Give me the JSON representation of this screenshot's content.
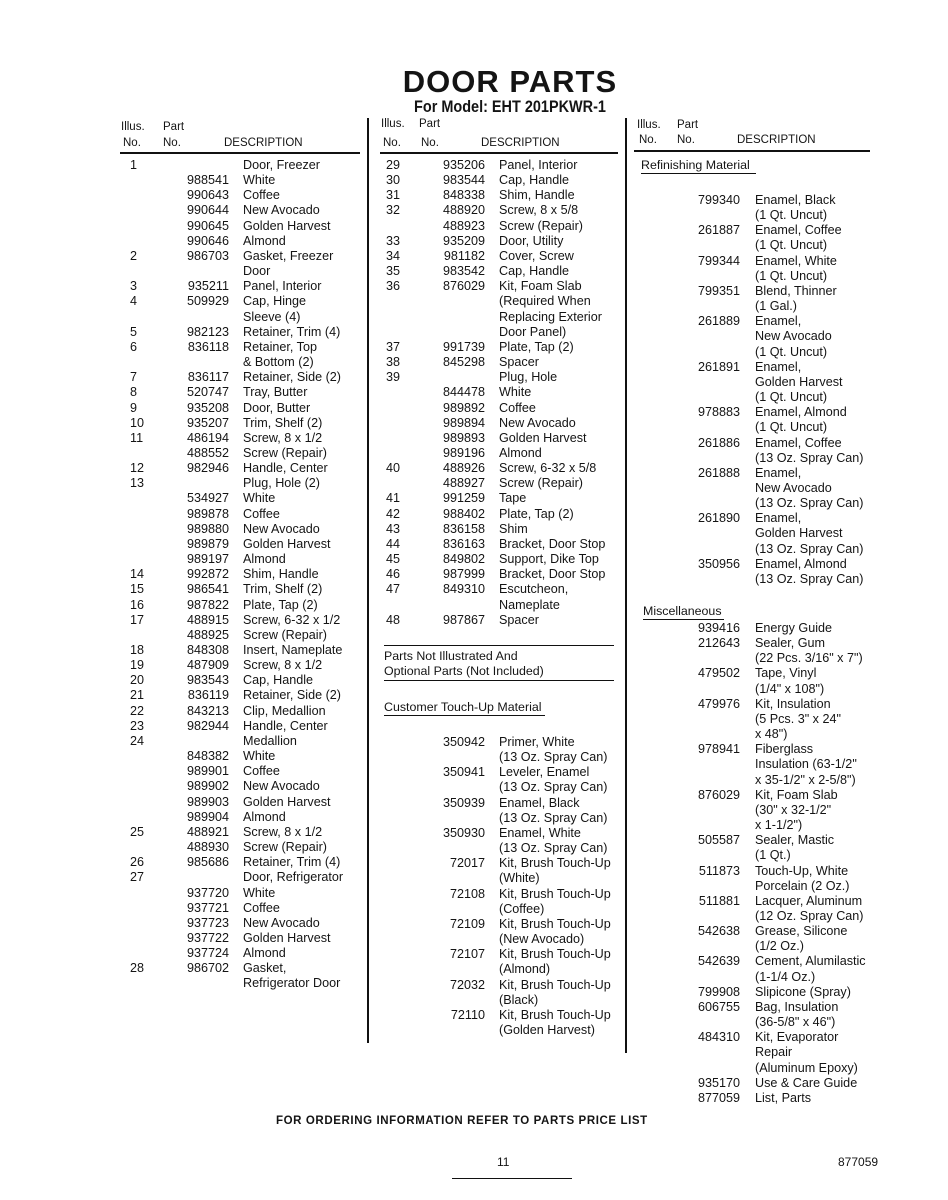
{
  "header": {
    "title": "DOOR PARTS",
    "subtitle": "For Model: EHT 201PKWR-1"
  },
  "columns_header": {
    "illus_1": "Illus.",
    "illus_2": "No.",
    "part_1": "Part",
    "part_2": "No.",
    "description": "DESCRIPTION"
  },
  "column1": [
    [
      "1",
      "",
      "Door, Freezer"
    ],
    [
      "",
      "988541",
      "White"
    ],
    [
      "",
      "990643",
      "Coffee"
    ],
    [
      "",
      "990644",
      "New Avocado"
    ],
    [
      "",
      "990645",
      "Golden Harvest"
    ],
    [
      "",
      "990646",
      "Almond"
    ],
    [
      "2",
      "986703",
      "Gasket, Freezer"
    ],
    [
      "",
      "",
      "Door"
    ],
    [
      "3",
      "935211",
      "Panel, Interior"
    ],
    [
      "4",
      "509929",
      "Cap, Hinge"
    ],
    [
      "",
      "",
      "Sleeve (4)"
    ],
    [
      "5",
      "982123",
      "Retainer, Trim (4)"
    ],
    [
      "6",
      "836118",
      "Retainer, Top"
    ],
    [
      "",
      "",
      "& Bottom (2)"
    ],
    [
      "7",
      "836117",
      "Retainer, Side (2)"
    ],
    [
      "8",
      "520747",
      "Tray, Butter"
    ],
    [
      "9",
      "935208",
      "Door, Butter"
    ],
    [
      "10",
      "935207",
      "Trim, Shelf (2)"
    ],
    [
      "11",
      "486194",
      "Screw, 8 x 1/2"
    ],
    [
      "",
      "488552",
      "Screw (Repair)"
    ],
    [
      "12",
      "982946",
      "Handle, Center"
    ],
    [
      "13",
      "",
      "Plug, Hole (2)"
    ],
    [
      "",
      "534927",
      "White"
    ],
    [
      "",
      "989878",
      "Coffee"
    ],
    [
      "",
      "989880",
      "New Avocado"
    ],
    [
      "",
      "989879",
      "Golden Harvest"
    ],
    [
      "",
      "989197",
      "Almond"
    ],
    [
      "14",
      "992872",
      "Shim, Handle"
    ],
    [
      "15",
      "986541",
      "Trim, Shelf (2)"
    ],
    [
      "16",
      "987822",
      "Plate, Tap (2)"
    ],
    [
      "17",
      "488915",
      "Screw, 6-32 x 1/2"
    ],
    [
      "",
      "488925",
      "Screw (Repair)"
    ],
    [
      "18",
      "848308",
      "Insert, Nameplate"
    ],
    [
      "19",
      "487909",
      "Screw, 8 x 1/2"
    ],
    [
      "20",
      "983543",
      "Cap, Handle"
    ],
    [
      "21",
      "836119",
      "Retainer, Side (2)"
    ],
    [
      "22",
      "843213",
      "Clip, Medallion"
    ],
    [
      "23",
      "982944",
      "Handle, Center"
    ],
    [
      "24",
      "",
      "Medallion"
    ],
    [
      "",
      "848382",
      "White"
    ],
    [
      "",
      "989901",
      "Coffee"
    ],
    [
      "",
      "989902",
      "New Avocado"
    ],
    [
      "",
      "989903",
      "Golden Harvest"
    ],
    [
      "",
      "989904",
      "Almond"
    ],
    [
      "25",
      "488921",
      "Screw, 8 x 1/2"
    ],
    [
      "",
      "488930",
      "Screw (Repair)"
    ],
    [
      "26",
      "985686",
      "Retainer, Trim (4)"
    ],
    [
      "27",
      "",
      "Door, Refrigerator"
    ],
    [
      "",
      "937720",
      "White"
    ],
    [
      "",
      "937721",
      "Coffee"
    ],
    [
      "",
      "937723",
      "New Avocado"
    ],
    [
      "",
      "937722",
      "Golden Harvest"
    ],
    [
      "",
      "937724",
      "Almond"
    ],
    [
      "28",
      "986702",
      "Gasket,"
    ],
    [
      "",
      "",
      "Refrigerator Door"
    ]
  ],
  "column2": [
    [
      "29",
      "935206",
      "Panel, Interior"
    ],
    [
      "30",
      "983544",
      "Cap, Handle"
    ],
    [
      "31",
      "848338",
      "Shim, Handle"
    ],
    [
      "32",
      "488920",
      "Screw, 8 x 5/8"
    ],
    [
      "",
      "488923",
      "Screw (Repair)"
    ],
    [
      "33",
      "935209",
      "Door, Utility"
    ],
    [
      "34",
      "981182",
      "Cover, Screw"
    ],
    [
      "35",
      "983542",
      "Cap, Handle"
    ],
    [
      "36",
      "876029",
      "Kit, Foam Slab"
    ],
    [
      "",
      "",
      "(Required When"
    ],
    [
      "",
      "",
      "Replacing Exterior"
    ],
    [
      "",
      "",
      "Door Panel)"
    ],
    [
      "37",
      "991739",
      "Plate, Tap (2)"
    ],
    [
      "38",
      "845298",
      "Spacer"
    ],
    [
      "39",
      "",
      "Plug, Hole"
    ],
    [
      "",
      "844478",
      "White"
    ],
    [
      "",
      "989892",
      "Coffee"
    ],
    [
      "",
      "989894",
      "New Avocado"
    ],
    [
      "",
      "989893",
      "Golden Harvest"
    ],
    [
      "",
      "989196",
      "Almond"
    ],
    [
      "40",
      "488926",
      "Screw, 6-32 x 5/8"
    ],
    [
      "",
      "488927",
      "Screw (Repair)"
    ],
    [
      "41",
      "991259",
      "Tape"
    ],
    [
      "42",
      "988402",
      "Plate, Tap (2)"
    ],
    [
      "43",
      "836158",
      "Shim"
    ],
    [
      "44",
      "836163",
      "Bracket, Door Stop"
    ],
    [
      "45",
      "849802",
      "Support, Dike Top"
    ],
    [
      "46",
      "987999",
      "Bracket, Door Stop"
    ],
    [
      "47",
      "849310",
      "Escutcheon,"
    ],
    [
      "",
      "",
      "Nameplate"
    ],
    [
      "48",
      "987867",
      "Spacer"
    ]
  ],
  "not_illustrated": {
    "line1": "Parts Not Illustrated And",
    "line2": "Optional Parts (Not Included)"
  },
  "touchup": {
    "heading": "Customer Touch-Up Material",
    "rows": [
      [
        "",
        "350942",
        "Primer, White"
      ],
      [
        "",
        "",
        "(13 Oz. Spray Can)"
      ],
      [
        "",
        "350941",
        "Leveler, Enamel"
      ],
      [
        "",
        "",
        "(13 Oz. Spray Can)"
      ],
      [
        "",
        "350939",
        "Enamel, Black"
      ],
      [
        "",
        "",
        "(13 Oz. Spray Can)"
      ],
      [
        "",
        "350930",
        "Enamel, White"
      ],
      [
        "",
        "",
        "(13 Oz. Spray Can)"
      ],
      [
        "",
        "72017",
        "Kit, Brush Touch-Up"
      ],
      [
        "",
        "",
        "(White)"
      ],
      [
        "",
        "72108",
        "Kit, Brush Touch-Up"
      ],
      [
        "",
        "",
        "(Coffee)"
      ],
      [
        "",
        "72109",
        "Kit, Brush Touch-Up"
      ],
      [
        "",
        "",
        "(New Avocado)"
      ],
      [
        "",
        "72107",
        "Kit, Brush Touch-Up"
      ],
      [
        "",
        "",
        "(Almond)"
      ],
      [
        "",
        "72032",
        "Kit, Brush Touch-Up"
      ],
      [
        "",
        "",
        "(Black)"
      ],
      [
        "",
        "72110",
        "Kit, Brush Touch-Up"
      ],
      [
        "",
        "",
        "(Golden Harvest)"
      ]
    ]
  },
  "refinishing": {
    "heading": "Refinishing Material",
    "rows": [
      [
        "",
        "799340",
        "Enamel, Black"
      ],
      [
        "",
        "",
        "(1 Qt. Uncut)"
      ],
      [
        "",
        "261887",
        "Enamel, Coffee"
      ],
      [
        "",
        "",
        "(1 Qt. Uncut)"
      ],
      [
        "",
        "799344",
        "Enamel, White"
      ],
      [
        "",
        "",
        "(1 Qt. Uncut)"
      ],
      [
        "",
        "799351",
        "Blend, Thinner"
      ],
      [
        "",
        "",
        "(1 Gal.)"
      ],
      [
        "",
        "261889",
        "Enamel,"
      ],
      [
        "",
        "",
        "New Avocado"
      ],
      [
        "",
        "",
        "(1 Qt. Uncut)"
      ],
      [
        "",
        "261891",
        "Enamel,"
      ],
      [
        "",
        "",
        "Golden Harvest"
      ],
      [
        "",
        "",
        "(1 Qt. Uncut)"
      ],
      [
        "",
        "978883",
        "Enamel, Almond"
      ],
      [
        "",
        "",
        "(1 Qt. Uncut)"
      ],
      [
        "",
        "261886",
        "Enamel, Coffee"
      ],
      [
        "",
        "",
        "(13 Oz. Spray Can)"
      ],
      [
        "",
        "261888",
        "Enamel,"
      ],
      [
        "",
        "",
        "New Avocado"
      ],
      [
        "",
        "",
        "(13 Oz. Spray Can)"
      ],
      [
        "",
        "261890",
        "Enamel,"
      ],
      [
        "",
        "",
        "Golden Harvest"
      ],
      [
        "",
        "",
        "(13 Oz. Spray Can)"
      ],
      [
        "",
        "350956",
        "Enamel, Almond"
      ],
      [
        "",
        "",
        "(13 Oz. Spray Can)"
      ]
    ]
  },
  "miscellaneous": {
    "heading": "Miscellaneous",
    "rows": [
      [
        "",
        "939416",
        "Energy Guide"
      ],
      [
        "",
        "212643",
        "Sealer, Gum"
      ],
      [
        "",
        "",
        "(22 Pcs. 3/16\" x 7\")"
      ],
      [
        "",
        "479502",
        "Tape, Vinyl"
      ],
      [
        "",
        "",
        "(1/4\" x 108\")"
      ],
      [
        "",
        "479976",
        "Kit, Insulation"
      ],
      [
        "",
        "",
        "(5 Pcs. 3\" x 24\""
      ],
      [
        "",
        "",
        "x 48\")"
      ],
      [
        "",
        "978941",
        "Fiberglass"
      ],
      [
        "",
        "",
        "Insulation (63-1/2\""
      ],
      [
        "",
        "",
        "x 35-1/2\" x 2-5/8\")"
      ],
      [
        "",
        "876029",
        "Kit, Foam Slab"
      ],
      [
        "",
        "",
        "(30\" x 32-1/2\""
      ],
      [
        "",
        "",
        "x 1-1/2\")"
      ],
      [
        "",
        "505587",
        "Sealer, Mastic"
      ],
      [
        "",
        "",
        "(1 Qt.)"
      ],
      [
        "",
        "511873",
        "Touch-Up, White"
      ],
      [
        "",
        "",
        "Porcelain (2 Oz.)"
      ],
      [
        "",
        "511881",
        "Lacquer, Aluminum"
      ],
      [
        "",
        "",
        "(12 Oz. Spray Can)"
      ],
      [
        "",
        "542638",
        "Grease, Silicone"
      ],
      [
        "",
        "",
        "(1/2 Oz.)"
      ],
      [
        "",
        "542639",
        "Cement, Alumilastic"
      ],
      [
        "",
        "",
        "(1-1/4 Oz.)"
      ],
      [
        "",
        "799908",
        "Slipicone (Spray)"
      ],
      [
        "",
        "606755",
        "Bag, Insulation"
      ],
      [
        "",
        "",
        "(36-5/8\" x 46\")"
      ],
      [
        "",
        "484310",
        "Kit, Evaporator"
      ],
      [
        "",
        "",
        "Repair"
      ],
      [
        "",
        "",
        "(Aluminum Epoxy)"
      ],
      [
        "",
        "935170",
        "Use & Care Guide"
      ],
      [
        "",
        "877059",
        "List, Parts"
      ]
    ]
  },
  "footer": {
    "ordering_note": "FOR ORDERING INFORMATION REFER TO PARTS PRICE LIST",
    "page_number": "11",
    "document_number": "877059"
  }
}
